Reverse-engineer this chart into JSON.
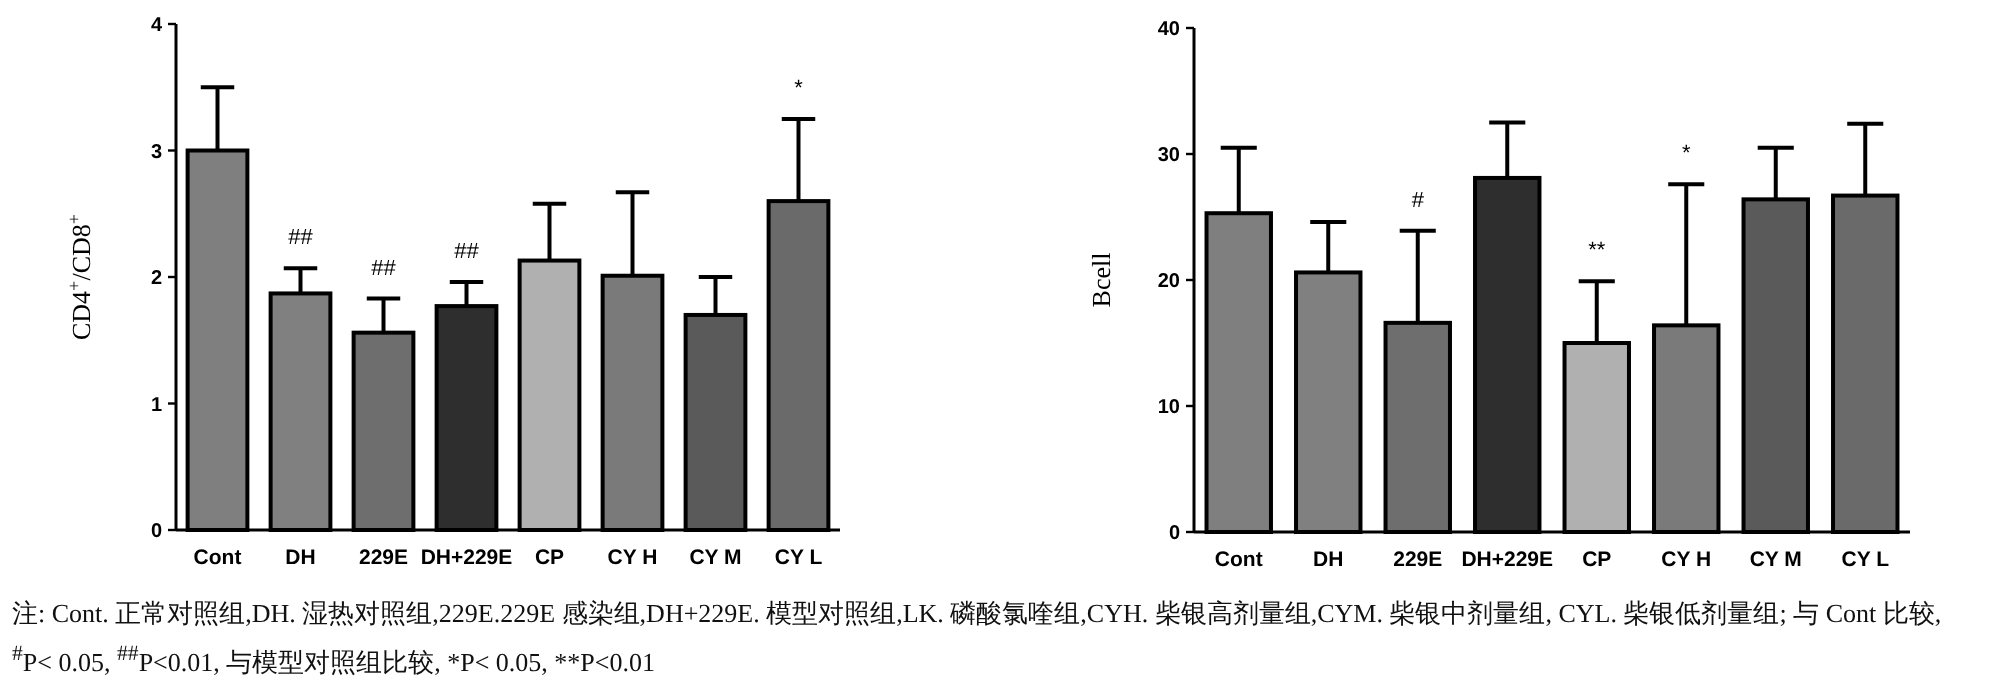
{
  "chart_data": [
    {
      "type": "bar",
      "ylabel": "CD4$^{+}$/CD8$^{+}$",
      "categories": [
        "Cont",
        "DH",
        "229E",
        "DH+229E",
        "CP",
        "CY H",
        "CY M",
        "CY L"
      ],
      "values": [
        3.0,
        1.87,
        1.56,
        1.77,
        2.13,
        2.01,
        1.7,
        2.6
      ],
      "errors": [
        [
          3.0,
          3.5
        ],
        [
          1.87,
          2.07
        ],
        [
          1.56,
          1.83
        ],
        [
          1.77,
          1.96
        ],
        [
          2.13,
          2.58
        ],
        [
          2.01,
          2.67
        ],
        [
          1.7,
          2.0
        ],
        [
          2.6,
          3.25
        ]
      ],
      "colors": [
        "#7f7f7f",
        "#808080",
        "#6e6e6e",
        "#2e2e2e",
        "#b0b0b0",
        "#7a7a7a",
        "#5a5a5a",
        "#6a6a6a"
      ],
      "ylim": [
        0,
        4
      ],
      "yticks": [
        0,
        1,
        2,
        3,
        4
      ],
      "annotations": [
        {
          "text": "##",
          "x": "DH",
          "y": 2.07
        },
        {
          "text": "##",
          "x": "229E",
          "y": 1.83
        },
        {
          "text": "##",
          "x": "DH+229E",
          "y": 1.96
        },
        {
          "text": "*",
          "x": "CY L",
          "y": 3.25
        },
        "注: Cont. 正常对照组,DH. 湿热对照组,229E.229E 感染组,DH+229E. 模型对照组,LK. 磷酸氯喹组,CYH. 柴银高剂量组,CYM. 柴银中剂量组, CYL. 柴银低剂量组; 与 Cont 比较, $^{#}$P< 0.05, $^{##}$P<0.01, 与模型对照组比较, *P< 0.05, **P<0.01"
      ]
    },
    {
      "type": "bar",
      "ylabel": "Bcell",
      "categories": [
        "Cont",
        "DH",
        "229E",
        "DH+229E",
        "CP",
        "CY H",
        "CY M",
        "CY L"
      ],
      "values": [
        25.3,
        20.6,
        16.6,
        28.1,
        15.0,
        16.4,
        26.4,
        26.7
      ],
      "errors": [
        [
          25.3,
          30.5
        ],
        [
          20.6,
          24.6
        ],
        [
          16.6,
          23.9
        ],
        [
          28.1,
          32.5
        ],
        [
          15.0,
          19.9
        ],
        [
          16.4,
          27.6
        ],
        [
          26.4,
          30.5
        ],
        [
          26.7,
          32.4
        ]
      ],
      "colors": [
        "#7f7f7f",
        "#808080",
        "#6e6e6e",
        "#2e2e2e",
        "#b0b0b0",
        "#7a7a7a",
        "#5a5a5a",
        "#6a6a6a"
      ],
      "ylim": [
        0,
        40
      ],
      "yticks": [
        0,
        10,
        20,
        30,
        40
      ],
      "annotations": [
        {
          "text": "#",
          "x": "229E",
          "y": 23.9
        },
        {
          "text": "**",
          "x": "CP",
          "y": 19.9
        },
        {
          "text": "*",
          "x": "CY H",
          "y": 27.6
        }
      ]
    }
  ]
}
